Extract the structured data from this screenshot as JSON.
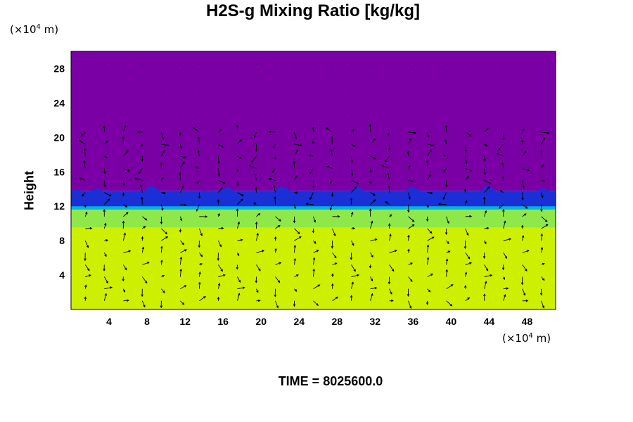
{
  "chart_data": {
    "type": "heatmap",
    "title": "H2S-g Mixing Ratio [kg/kg]",
    "ylabel": "Height",
    "x_unit": {
      "prefix": "(×10",
      "exp": "4",
      "suffix": " m)"
    },
    "y_unit": {
      "prefix": "(×10",
      "exp": "4",
      "suffix": " m)"
    },
    "xlim": [
      0,
      51
    ],
    "ylim": [
      0,
      30
    ],
    "x_ticks": [
      4,
      8,
      12,
      16,
      20,
      24,
      28,
      32,
      36,
      40,
      44,
      48
    ],
    "y_ticks": [
      4,
      8,
      12,
      16,
      20,
      24,
      28
    ],
    "grid": false,
    "field_layers": [
      {
        "name": "upper",
        "y_range": [
          13.8,
          30
        ],
        "color": "#7a00a6"
      },
      {
        "name": "cloud-top",
        "y_range": [
          12.3,
          13.8
        ],
        "color": "#1a2fd6"
      },
      {
        "name": "transition",
        "y_range": [
          11.6,
          12.3
        ],
        "color": "#00b4e0"
      },
      {
        "name": "green band",
        "y_range": [
          9.5,
          11.6
        ],
        "color": "#8ee84a"
      },
      {
        "name": "lower",
        "y_range": [
          0,
          9.5
        ],
        "color": "#ccf000"
      }
    ],
    "wind_arrows": "vector field overlay (arrows)"
  },
  "time": {
    "label": "TIME = ",
    "value": "8025600.0"
  }
}
